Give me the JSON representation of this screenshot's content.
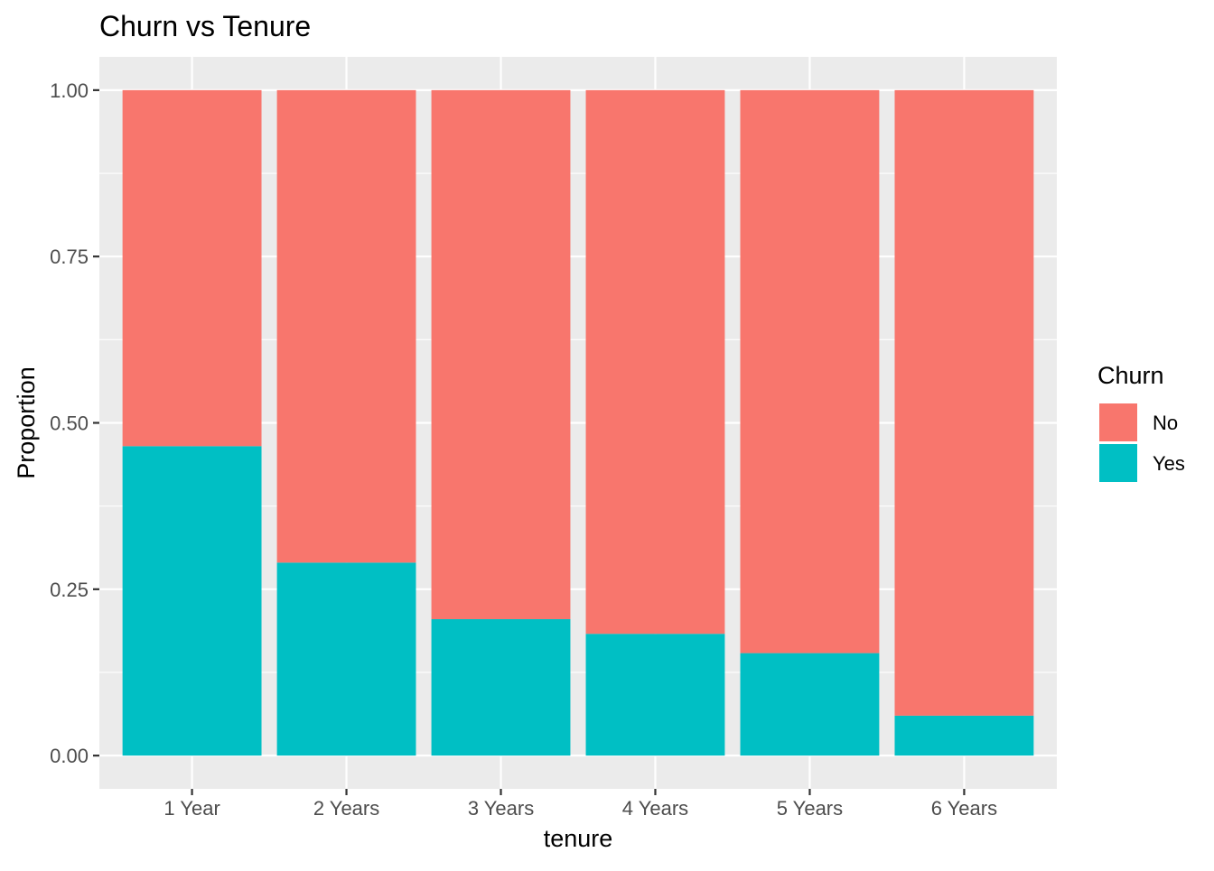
{
  "chart_data": {
    "type": "bar",
    "stacked": true,
    "title": "Churn vs Tenure",
    "xlabel": "tenure",
    "ylabel": "Proportion",
    "categories": [
      "1 Year",
      "2 Years",
      "3 Years",
      "4 Years",
      "5 Years",
      "6 Years"
    ],
    "series": [
      {
        "name": "No",
        "color": "#f8766d",
        "values": [
          0.535,
          0.71,
          0.795,
          0.817,
          0.846,
          0.94
        ]
      },
      {
        "name": "Yes",
        "color": "#00bfc4",
        "values": [
          0.465,
          0.29,
          0.205,
          0.183,
          0.154,
          0.06
        ]
      }
    ],
    "ylim": [
      -0.05,
      1.05
    ],
    "yticks": [
      0,
      0.25,
      0.5,
      0.75,
      1
    ],
    "ytick_labels": [
      "0.00",
      "0.25",
      "0.50",
      "0.75",
      "1.00"
    ],
    "grid": true,
    "legend": {
      "title": "Churn",
      "placement": "right",
      "items": [
        {
          "label": "No",
          "color": "#f8766d"
        },
        {
          "label": "Yes",
          "color": "#00bfc4"
        }
      ]
    },
    "panel_background": "#ebebeb",
    "grid_color": "#ffffff"
  }
}
